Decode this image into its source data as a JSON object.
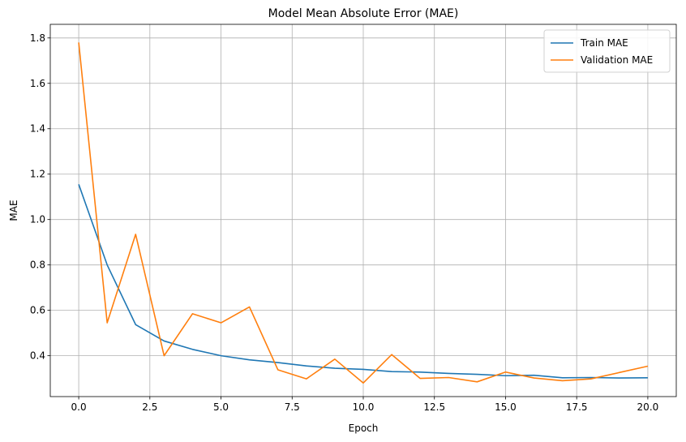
{
  "chart_data": {
    "type": "line",
    "title": "Model Mean Absolute Error (MAE)",
    "xlabel": "Epoch",
    "ylabel": "MAE",
    "xlim": [
      -1.0,
      21.0
    ],
    "ylim": [
      0.22,
      1.86
    ],
    "xticks": [
      0,
      2.5,
      5,
      7.5,
      10,
      12.5,
      15,
      17.5,
      20
    ],
    "xtick_labels": [
      "0.0",
      "2.5",
      "5.0",
      "7.5",
      "10.0",
      "12.5",
      "15.0",
      "17.5",
      "20.0"
    ],
    "yticks": [
      0.4,
      0.6,
      0.8,
      1.0,
      1.2,
      1.4,
      1.6,
      1.8
    ],
    "ytick_labels": [
      "0.4",
      "0.6",
      "0.8",
      "1.0",
      "1.2",
      "1.4",
      "1.6",
      "1.8"
    ],
    "grid": true,
    "legend_position": "top-right",
    "x": [
      0,
      1,
      2,
      3,
      4,
      5,
      6,
      7,
      8,
      9,
      10,
      11,
      12,
      13,
      14,
      15,
      16,
      17,
      18,
      19,
      20
    ],
    "series": [
      {
        "name": "Train MAE",
        "color": "#1f77b4",
        "values": [
          1.155,
          0.8,
          0.537,
          0.465,
          0.428,
          0.4,
          0.382,
          0.37,
          0.355,
          0.345,
          0.34,
          0.33,
          0.328,
          0.322,
          0.318,
          0.312,
          0.314,
          0.303,
          0.304,
          0.302,
          0.303
        ]
      },
      {
        "name": "Validation MAE",
        "color": "#ff7f0e",
        "values": [
          1.78,
          0.545,
          0.935,
          0.4,
          0.585,
          0.545,
          0.615,
          0.338,
          0.298,
          0.385,
          0.28,
          0.405,
          0.3,
          0.304,
          0.285,
          0.328,
          0.302,
          0.29,
          0.298,
          0.326,
          0.354
        ]
      }
    ]
  }
}
